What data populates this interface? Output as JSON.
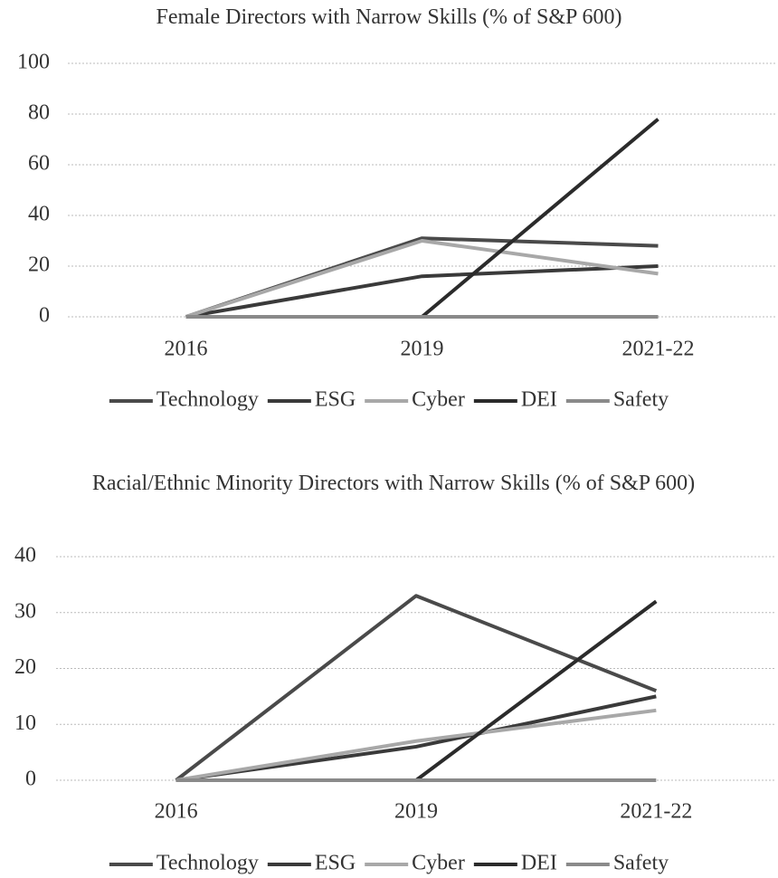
{
  "chart_data": [
    {
      "type": "line",
      "title": "Female Directors with Narrow Skills (% of S&P 600)",
      "categories": [
        "2016",
        "2019",
        "2021-22"
      ],
      "series": [
        {
          "name": "Technology",
          "color": "#4a4a4a",
          "values": [
            0,
            31,
            28
          ]
        },
        {
          "name": "ESG",
          "color": "#3a3a3a",
          "values": [
            0,
            16,
            20
          ]
        },
        {
          "name": "Cyber",
          "color": "#a8a8a8",
          "values": [
            0,
            30,
            17
          ]
        },
        {
          "name": "DEI",
          "color": "#2b2b2b",
          "values": [
            0,
            0,
            78
          ]
        },
        {
          "name": "Safety",
          "color": "#8a8a8a",
          "values": [
            0,
            0,
            0
          ]
        }
      ],
      "ylim": [
        0,
        100
      ],
      "yticks": [
        0,
        20,
        40,
        60,
        80,
        100
      ],
      "grid": true,
      "legend": "bottom"
    },
    {
      "type": "line",
      "title": "Racial/Ethnic Minority Directors with Narrow Skills (% of S&P 600)",
      "categories": [
        "2016",
        "2019",
        "2021-22"
      ],
      "series": [
        {
          "name": "Technology",
          "color": "#4a4a4a",
          "values": [
            0,
            33,
            16
          ]
        },
        {
          "name": "ESG",
          "color": "#3a3a3a",
          "values": [
            0,
            6,
            15
          ]
        },
        {
          "name": "Cyber",
          "color": "#a8a8a8",
          "values": [
            0,
            7,
            12.5
          ]
        },
        {
          "name": "DEI",
          "color": "#2b2b2b",
          "values": [
            0,
            0,
            32
          ]
        },
        {
          "name": "Safety",
          "color": "#8a8a8a",
          "values": [
            0,
            0,
            0
          ]
        }
      ],
      "ylim": [
        0,
        40
      ],
      "yticks": [
        0,
        10,
        20,
        30,
        40
      ],
      "grid": true,
      "legend": "bottom"
    }
  ]
}
